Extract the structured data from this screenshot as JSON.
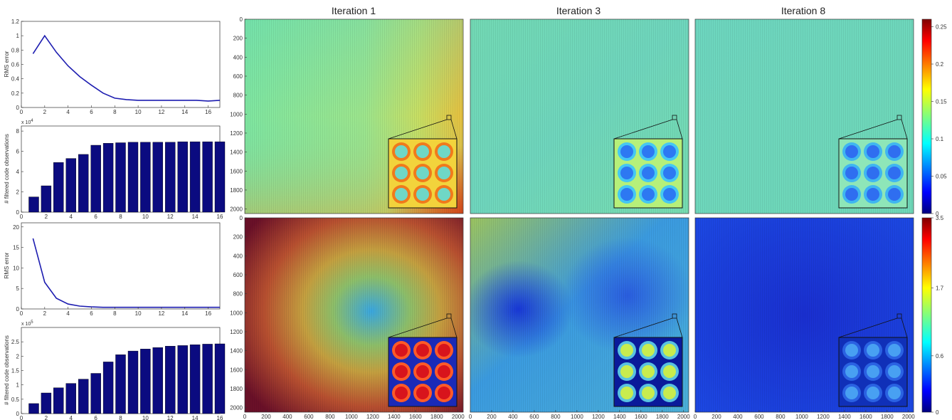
{
  "column_titles": [
    "Iteration 1",
    "Iteration 3",
    "Iteration 8"
  ],
  "chart_data": [
    {
      "type": "line",
      "panel": "top-rms",
      "title": "",
      "xlabel": "",
      "ylabel": "RMS error",
      "x": [
        1,
        2,
        3,
        4,
        5,
        6,
        7,
        8,
        9,
        10,
        11,
        12,
        13,
        14,
        15,
        16,
        17
      ],
      "y": [
        0.75,
        1.0,
        0.77,
        0.58,
        0.43,
        0.31,
        0.2,
        0.13,
        0.11,
        0.1,
        0.1,
        0.1,
        0.1,
        0.1,
        0.1,
        0.09,
        0.1
      ],
      "xlim": [
        0,
        17
      ],
      "ylim": [
        0,
        1.2
      ],
      "xticks": [
        "0",
        "2",
        "4",
        "6",
        "8",
        "10",
        "12",
        "14",
        "16"
      ],
      "yticks": [
        "0",
        "0.2",
        "0.4",
        "0.6",
        "0.8",
        "1",
        "1.2"
      ],
      "color": "#1c1cb0"
    },
    {
      "type": "bar",
      "panel": "top-count",
      "title": "",
      "xlabel": "",
      "ylabel": "# filtered code observations",
      "multiplier": "x 10",
      "multiplier_exp": "4",
      "categories": [
        1,
        2,
        3,
        4,
        5,
        6,
        7,
        8,
        9,
        10,
        11,
        12,
        13,
        14,
        15,
        16
      ],
      "values": [
        1.5,
        2.6,
        4.9,
        5.3,
        5.7,
        6.6,
        6.8,
        6.85,
        6.9,
        6.9,
        6.9,
        6.9,
        6.95,
        6.95,
        6.95,
        6.95
      ],
      "xlim": [
        0,
        16
      ],
      "ylim": [
        0,
        8.5
      ],
      "xticks": [
        "0",
        "2",
        "4",
        "6",
        "8",
        "10",
        "12",
        "14",
        "16"
      ],
      "yticks": [
        "0",
        "2",
        "4",
        "6",
        "8"
      ],
      "color": "#0b0b80"
    },
    {
      "type": "line",
      "panel": "bottom-rms",
      "title": "",
      "xlabel": "",
      "ylabel": "RMS error",
      "x": [
        1,
        2,
        3,
        4,
        5,
        6,
        7,
        8,
        9,
        10,
        11,
        12,
        13,
        14,
        15,
        16,
        17
      ],
      "y": [
        17.2,
        6.5,
        2.6,
        1.2,
        0.7,
        0.5,
        0.4,
        0.4,
        0.4,
        0.4,
        0.4,
        0.4,
        0.4,
        0.4,
        0.4,
        0.4,
        0.4
      ],
      "xlim": [
        0,
        17
      ],
      "ylim": [
        0,
        21
      ],
      "xticks": [
        "0",
        "2",
        "4",
        "6",
        "8",
        "10",
        "12",
        "14",
        "16"
      ],
      "yticks": [
        "0",
        "5",
        "10",
        "15",
        "20"
      ],
      "color": "#1c1cb0"
    },
    {
      "type": "bar",
      "panel": "bottom-count",
      "title": "",
      "xlabel": "",
      "ylabel": "# filtered code observations",
      "multiplier": "x 10",
      "multiplier_exp": "5",
      "categories": [
        1,
        2,
        3,
        4,
        5,
        6,
        7,
        8,
        9,
        10,
        11,
        12,
        13,
        14,
        15,
        16
      ],
      "values": [
        0.35,
        0.72,
        0.9,
        1.05,
        1.2,
        1.4,
        1.8,
        2.05,
        2.18,
        2.25,
        2.3,
        2.35,
        2.37,
        2.4,
        2.42,
        2.43
      ],
      "xlim": [
        0,
        16
      ],
      "ylim": [
        0,
        3
      ],
      "xticks": [
        "0",
        "2",
        "4",
        "6",
        "8",
        "10",
        "12",
        "14",
        "16"
      ],
      "yticks": [
        "0",
        "0.5",
        "1",
        "1.5",
        "2",
        "2.5"
      ],
      "color": "#0b0b80"
    },
    {
      "type": "heatmap",
      "panel": "error-maps",
      "rows": [
        {
          "name": "top",
          "colorbar_ticks": [
            "0",
            "0.05",
            "0.1",
            "0.15",
            "0.2",
            "0.25"
          ],
          "colorbar_range": [
            0,
            0.26
          ]
        },
        {
          "name": "bottom",
          "colorbar_ticks": [
            "0",
            "0.6",
            "1.7",
            "3.5"
          ]
        }
      ],
      "axis_ticks": [
        "0",
        "200",
        "400",
        "600",
        "800",
        "1000",
        "1200",
        "1400",
        "1600",
        "1800",
        "2000"
      ],
      "xlim": [
        0,
        2048
      ],
      "ylim": [
        0,
        2048
      ],
      "colormap": "jet"
    }
  ]
}
